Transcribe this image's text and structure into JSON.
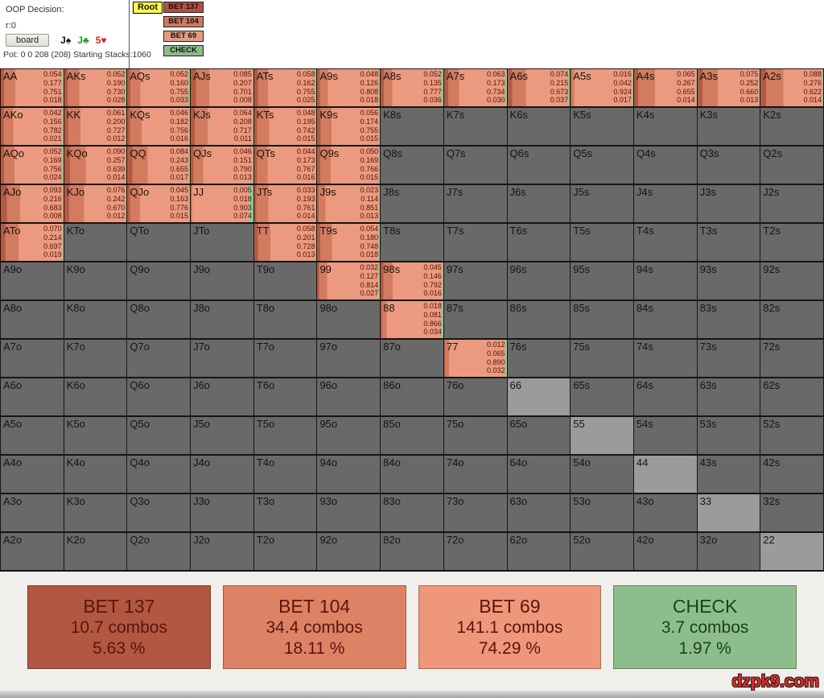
{
  "header": {
    "title": "OOP Decision:",
    "node": "r:0",
    "board_button": "board",
    "cards": [
      {
        "rank": "J",
        "suit": "♠",
        "color": "#111111"
      },
      {
        "rank": "J",
        "suit": "♣",
        "color": "#1e9b1e"
      },
      {
        "rank": "5",
        "suit": "♥",
        "color": "#d22a1e"
      }
    ],
    "pot_line": "Pot: 0 0 208 (208) Starting Stacks:1060"
  },
  "tree": {
    "root_label": "Root",
    "actions": [
      {
        "label": "BET 137",
        "color": "#b05243"
      },
      {
        "label": "BET 104",
        "color": "#cd7a5e"
      },
      {
        "label": "BET 69",
        "color": "#e89a7e"
      },
      {
        "label": "CHECK",
        "color": "#8fbb8a"
      }
    ]
  },
  "strategy": {
    "action_colors": [
      "#b25a44",
      "#d27b5f",
      "#ec9a7f",
      "#93c493"
    ]
  },
  "grid": {
    "rows": [
      [
        {
          "l": "AA",
          "v": [
            0.054,
            0.177,
            0.751,
            0.018
          ]
        },
        {
          "l": "AKs",
          "v": [
            0.052,
            0.19,
            0.73,
            0.028
          ]
        },
        {
          "l": "AQs",
          "v": [
            0.052,
            0.16,
            0.755,
            0.033
          ]
        },
        {
          "l": "AJs",
          "v": [
            0.085,
            0.207,
            0.701,
            0.008
          ]
        },
        {
          "l": "ATs",
          "v": [
            0.058,
            0.162,
            0.755,
            0.025
          ]
        },
        {
          "l": "A9s",
          "v": [
            0.048,
            0.126,
            0.808,
            0.018
          ]
        },
        {
          "l": "A8s",
          "v": [
            0.052,
            0.135,
            0.777,
            0.036
          ]
        },
        {
          "l": "A7s",
          "v": [
            0.063,
            0.173,
            0.734,
            0.03
          ]
        },
        {
          "l": "A6s",
          "v": [
            0.074,
            0.215,
            0.673,
            0.037
          ]
        },
        {
          "l": "A5s",
          "v": [
            0.016,
            0.042,
            0.924,
            0.017
          ]
        },
        {
          "l": "A4s",
          "v": [
            0.065,
            0.267,
            0.655,
            0.014
          ]
        },
        {
          "l": "A3s",
          "v": [
            0.075,
            0.252,
            0.66,
            0.013
          ]
        },
        {
          "l": "A2s",
          "v": [
            0.088,
            0.276,
            0.622,
            0.014
          ]
        }
      ],
      [
        {
          "l": "AKo",
          "v": [
            0.042,
            0.156,
            0.782,
            0.021
          ]
        },
        {
          "l": "KK",
          "v": [
            0.061,
            0.2,
            0.727,
            0.012
          ]
        },
        {
          "l": "KQs",
          "v": [
            0.046,
            0.182,
            0.756,
            0.016
          ]
        },
        {
          "l": "KJs",
          "v": [
            0.064,
            0.208,
            0.717,
            0.011
          ]
        },
        {
          "l": "KTs",
          "v": [
            0.048,
            0.195,
            0.742,
            0.015
          ]
        },
        {
          "l": "K9s",
          "v": [
            0.056,
            0.174,
            0.755,
            0.015
          ]
        },
        {
          "l": "K8s"
        },
        {
          "l": "K7s"
        },
        {
          "l": "K6s"
        },
        {
          "l": "K5s"
        },
        {
          "l": "K4s"
        },
        {
          "l": "K3s"
        },
        {
          "l": "K2s"
        }
      ],
      [
        {
          "l": "AQo",
          "v": [
            0.052,
            0.169,
            0.756,
            0.024
          ]
        },
        {
          "l": "KQo",
          "v": [
            0.09,
            0.257,
            0.639,
            0.014
          ]
        },
        {
          "l": "QQ",
          "v": [
            0.084,
            0.243,
            0.655,
            0.017
          ]
        },
        {
          "l": "QJs",
          "v": [
            0.046,
            0.151,
            0.79,
            0.013
          ]
        },
        {
          "l": "QTs",
          "v": [
            0.044,
            0.173,
            0.767,
            0.016
          ]
        },
        {
          "l": "Q9s",
          "v": [
            0.05,
            0.169,
            0.766,
            0.015
          ]
        },
        {
          "l": "Q8s"
        },
        {
          "l": "Q7s"
        },
        {
          "l": "Q6s"
        },
        {
          "l": "Q5s"
        },
        {
          "l": "Q4s"
        },
        {
          "l": "Q3s"
        },
        {
          "l": "Q2s"
        }
      ],
      [
        {
          "l": "AJo",
          "v": [
            0.093,
            0.216,
            0.683,
            0.008
          ]
        },
        {
          "l": "KJo",
          "v": [
            0.076,
            0.242,
            0.67,
            0.012
          ]
        },
        {
          "l": "QJo",
          "v": [
            0.045,
            0.163,
            0.776,
            0.015
          ]
        },
        {
          "l": "JJ",
          "v": [
            0.005,
            0.018,
            0.903,
            0.074
          ]
        },
        {
          "l": "JTs",
          "v": [
            0.033,
            0.193,
            0.761,
            0.014
          ]
        },
        {
          "l": "J9s",
          "v": [
            0.023,
            0.114,
            0.851,
            0.013
          ]
        },
        {
          "l": "J8s"
        },
        {
          "l": "J7s"
        },
        {
          "l": "J6s"
        },
        {
          "l": "J5s"
        },
        {
          "l": "J4s"
        },
        {
          "l": "J3s"
        },
        {
          "l": "J2s"
        }
      ],
      [
        {
          "l": "ATo",
          "v": [
            0.07,
            0.214,
            0.697,
            0.019
          ]
        },
        {
          "l": "KTo"
        },
        {
          "l": "QTo"
        },
        {
          "l": "JTo"
        },
        {
          "l": "TT",
          "v": [
            0.058,
            0.201,
            0.728,
            0.013
          ]
        },
        {
          "l": "T9s",
          "v": [
            0.054,
            0.18,
            0.748,
            0.018
          ]
        },
        {
          "l": "T8s"
        },
        {
          "l": "T7s"
        },
        {
          "l": "T6s"
        },
        {
          "l": "T5s"
        },
        {
          "l": "T4s"
        },
        {
          "l": "T3s"
        },
        {
          "l": "T2s"
        }
      ],
      [
        {
          "l": "A9o"
        },
        {
          "l": "K9o"
        },
        {
          "l": "Q9o"
        },
        {
          "l": "J9o"
        },
        {
          "l": "T9o"
        },
        {
          "l": "99",
          "v": [
            0.032,
            0.127,
            0.814,
            0.027
          ]
        },
        {
          "l": "98s",
          "v": [
            0.045,
            0.146,
            0.792,
            0.016
          ]
        },
        {
          "l": "97s"
        },
        {
          "l": "96s"
        },
        {
          "l": "95s"
        },
        {
          "l": "94s"
        },
        {
          "l": "93s"
        },
        {
          "l": "92s"
        }
      ],
      [
        {
          "l": "A8o"
        },
        {
          "l": "K8o"
        },
        {
          "l": "Q8o"
        },
        {
          "l": "J8o"
        },
        {
          "l": "T8o"
        },
        {
          "l": "98o"
        },
        {
          "l": "88",
          "v": [
            0.018,
            0.081,
            0.866,
            0.034
          ]
        },
        {
          "l": "87s"
        },
        {
          "l": "86s"
        },
        {
          "l": "85s"
        },
        {
          "l": "84s"
        },
        {
          "l": "83s"
        },
        {
          "l": "82s"
        }
      ],
      [
        {
          "l": "A7o"
        },
        {
          "l": "K7o"
        },
        {
          "l": "Q7o"
        },
        {
          "l": "J7o"
        },
        {
          "l": "T7o"
        },
        {
          "l": "97o"
        },
        {
          "l": "87o"
        },
        {
          "l": "77",
          "v": [
            0.012,
            0.065,
            0.89,
            0.032
          ]
        },
        {
          "l": "76s"
        },
        {
          "l": "75s"
        },
        {
          "l": "74s"
        },
        {
          "l": "73s"
        },
        {
          "l": "72s"
        }
      ],
      [
        {
          "l": "A6o"
        },
        {
          "l": "K6o"
        },
        {
          "l": "Q6o"
        },
        {
          "l": "J6o"
        },
        {
          "l": "T6o"
        },
        {
          "l": "96o"
        },
        {
          "l": "86o"
        },
        {
          "l": "76o"
        },
        {
          "l": "66",
          "pair": true
        },
        {
          "l": "65s"
        },
        {
          "l": "64s"
        },
        {
          "l": "63s"
        },
        {
          "l": "62s"
        }
      ],
      [
        {
          "l": "A5o"
        },
        {
          "l": "K5o"
        },
        {
          "l": "Q5o"
        },
        {
          "l": "J5o"
        },
        {
          "l": "T5o"
        },
        {
          "l": "95o"
        },
        {
          "l": "85o"
        },
        {
          "l": "75o"
        },
        {
          "l": "65o"
        },
        {
          "l": "55",
          "pair": true
        },
        {
          "l": "54s"
        },
        {
          "l": "53s"
        },
        {
          "l": "52s"
        }
      ],
      [
        {
          "l": "A4o"
        },
        {
          "l": "K4o"
        },
        {
          "l": "Q4o"
        },
        {
          "l": "J4o"
        },
        {
          "l": "T4o"
        },
        {
          "l": "94o"
        },
        {
          "l": "84o"
        },
        {
          "l": "74o"
        },
        {
          "l": "64o"
        },
        {
          "l": "54o"
        },
        {
          "l": "44",
          "pair": true
        },
        {
          "l": "43s"
        },
        {
          "l": "42s"
        }
      ],
      [
        {
          "l": "A3o"
        },
        {
          "l": "K3o"
        },
        {
          "l": "Q3o"
        },
        {
          "l": "J3o"
        },
        {
          "l": "T3o"
        },
        {
          "l": "93o"
        },
        {
          "l": "83o"
        },
        {
          "l": "73o"
        },
        {
          "l": "63o"
        },
        {
          "l": "53o"
        },
        {
          "l": "43o"
        },
        {
          "l": "33",
          "pair": true
        },
        {
          "l": "32s"
        }
      ],
      [
        {
          "l": "A2o"
        },
        {
          "l": "K2o"
        },
        {
          "l": "Q2o"
        },
        {
          "l": "J2o"
        },
        {
          "l": "T2o"
        },
        {
          "l": "92o"
        },
        {
          "l": "82o"
        },
        {
          "l": "72o"
        },
        {
          "l": "62o"
        },
        {
          "l": "52o"
        },
        {
          "l": "42o"
        },
        {
          "l": "32o"
        },
        {
          "l": "22",
          "pair": true
        }
      ]
    ]
  },
  "summary": [
    {
      "label": "BET 137",
      "combos": "10.7 combos",
      "percent": "5.63 %",
      "bg": "#b25741",
      "text": "#5a150c"
    },
    {
      "label": "BET 104",
      "combos": "34.4 combos",
      "percent": "18.11 %",
      "bg": "#dd8265",
      "text": "#5a150c"
    },
    {
      "label": "BET 69",
      "combos": "141.1 combos",
      "percent": "74.29 %",
      "bg": "#ee977b",
      "text": "#5a150c"
    },
    {
      "label": "CHECK",
      "combos": "3.7 combos",
      "percent": "1.97 %",
      "bg": "#8ebd8c",
      "text": "#17421d"
    }
  ],
  "watermark": "dzpk9.com"
}
